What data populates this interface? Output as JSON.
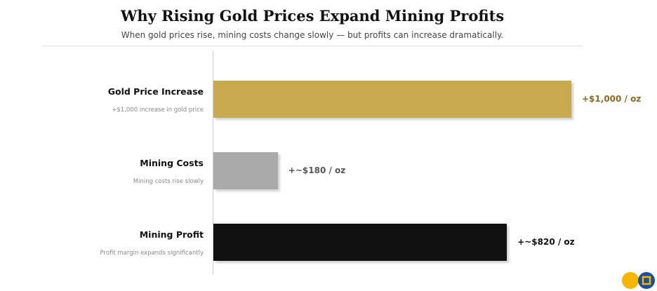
{
  "chart_data": {
    "type": "bar",
    "orientation": "horizontal",
    "title": "Why Rising Gold Prices Expand Mining Profits",
    "subtitle": "When gold prices rise, mining costs change slowly — but profits can increase dramatically.",
    "categories": [
      "Gold Price Increase",
      "Mining Costs",
      "Mining Profit"
    ],
    "descriptions": [
      "+$1,000 increase in gold price",
      "Mining costs rise slowly",
      "Profit margin expands significantly"
    ],
    "values": [
      1000,
      180,
      820
    ],
    "value_labels": [
      "+$1,000 / oz",
      "+~$180 / oz",
      "+~$820 / oz"
    ],
    "colors": [
      "#c9a94d",
      "#aaaaaa",
      "#111111"
    ],
    "label_colors": [
      "#8a6a1c",
      "#555555",
      "#111111"
    ],
    "grid": false
  }
}
